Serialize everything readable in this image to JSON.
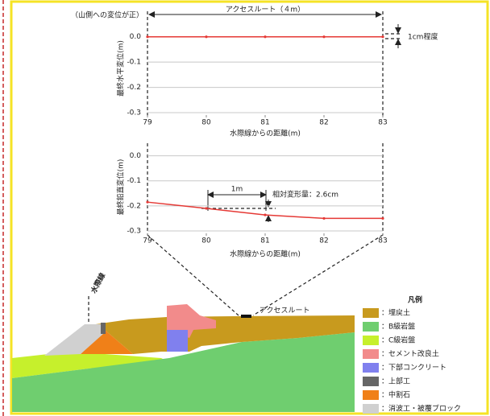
{
  "chart_data": [
    {
      "type": "line",
      "y_label": "最終水平変位(m)",
      "x_label": "水際線からの距離(m)",
      "x": [
        79,
        80,
        81,
        82,
        83
      ],
      "series": [
        {
          "color": "#e53935",
          "values": [
            0,
            0,
            0,
            0,
            0
          ]
        }
      ],
      "xlim": [
        79,
        83
      ],
      "xticks": [
        79,
        80,
        81,
        82,
        83
      ],
      "ylim": [
        -0.3,
        0.05
      ],
      "yticks": [
        {
          "value": 0,
          "label": "0.0"
        },
        -0.1,
        -0.2,
        -0.3
      ],
      "grid": true,
      "annotations": [
        "（山側への変位が正）",
        "アクセスルート（４m）",
        "1cm程度"
      ]
    },
    {
      "type": "line",
      "y_label": "最終鉛直変位(m)",
      "x_label": "水際線からの距離(m)",
      "x": [
        79,
        80,
        81,
        82,
        83
      ],
      "series": [
        {
          "color": "#e53935",
          "values": [
            -0.185,
            -0.21,
            -0.236,
            -0.25,
            -0.25
          ]
        }
      ],
      "xlim": [
        79,
        83
      ],
      "xticks": [
        79,
        80,
        81,
        82,
        83
      ],
      "ylim": [
        -0.3,
        0.05
      ],
      "yticks": [
        {
          "value": 0,
          "label": "0.0"
        },
        -0.1,
        -0.2,
        -0.3
      ],
      "grid": true,
      "annotations": [
        "1m",
        "相対変形量：2.6cm"
      ]
    }
  ],
  "diagram": {
    "waterline_label": "水際線",
    "access_route_label": "アクセスルート",
    "legend": {
      "title": "凡例",
      "items": [
        {
          "label": "：埋戻土",
          "color": "#c89a1e"
        },
        {
          "label": "：B級岩盤",
          "color": "#6fce6f"
        },
        {
          "label": "：C級岩盤",
          "color": "#c6f02c"
        },
        {
          "label": "：セメント改良土",
          "color": "#f28b8b"
        },
        {
          "label": "：下部コンクリート",
          "color": "#8080ee"
        },
        {
          "label": "：上部工",
          "color": "#666666"
        },
        {
          "label": "：中割石",
          "color": "#f08018"
        },
        {
          "label": "：消波工・被覆ブロック",
          "color": "#d0d0d0"
        }
      ]
    }
  }
}
